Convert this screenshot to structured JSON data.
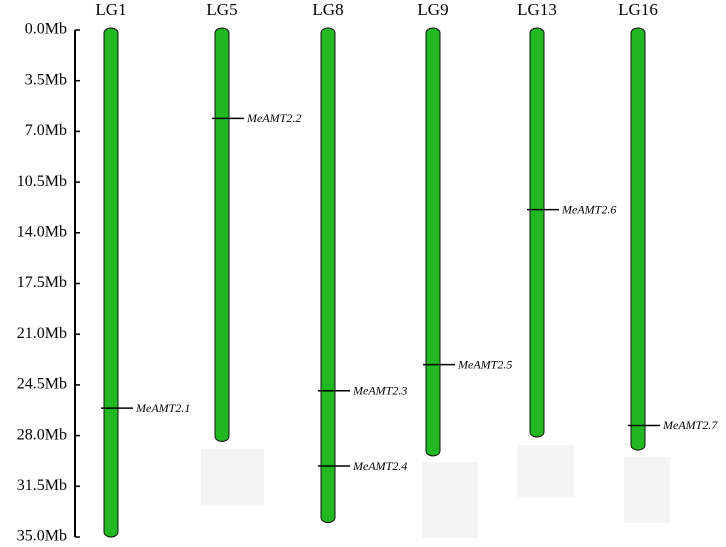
{
  "chart_data": {
    "type": "chromosome",
    "ylim": [
      0,
      35
    ],
    "color": "#22b822",
    "yticks": [
      {
        "value": 0,
        "label": "0.0Mb"
      },
      {
        "value": 3.5,
        "label": "3.5Mb"
      },
      {
        "value": 7,
        "label": "7.0Mb"
      },
      {
        "value": 10.5,
        "label": "10.5Mb"
      },
      {
        "value": 14,
        "label": "14.0Mb"
      },
      {
        "value": 17.5,
        "label": "17.5Mb"
      },
      {
        "value": 21,
        "label": "21.0Mb"
      },
      {
        "value": 24.5,
        "label": "24.5Mb"
      },
      {
        "value": 28,
        "label": "28.0Mb"
      },
      {
        "value": 31.5,
        "label": "31.5Mb"
      },
      {
        "value": 35,
        "label": "35.0Mb"
      }
    ],
    "chromosomes": [
      {
        "name": "LG1",
        "length": 35,
        "genes": [
          {
            "name": "MeAMT2.1",
            "position": 26.1
          }
        ]
      },
      {
        "name": "LG5",
        "length": 28.4,
        "genes": [
          {
            "name": "MeAMT2.2",
            "position": 6.1
          }
        ]
      },
      {
        "name": "LG8",
        "length": 34.0,
        "genes": [
          {
            "name": "MeAMT2.3",
            "position": 24.9
          },
          {
            "name": "MeAMT2.4",
            "position": 30.1
          }
        ]
      },
      {
        "name": "LG9",
        "length": 29.4,
        "genes": [
          {
            "name": "MeAMT2.5",
            "position": 23.1
          }
        ]
      },
      {
        "name": "LG13",
        "length": 28.1,
        "genes": [
          {
            "name": "MeAMT2.6",
            "position": 12.4
          }
        ]
      },
      {
        "name": "LG16",
        "length": 29.0,
        "genes": [
          {
            "name": "MeAMT2.7",
            "position": 27.3
          }
        ]
      }
    ]
  }
}
